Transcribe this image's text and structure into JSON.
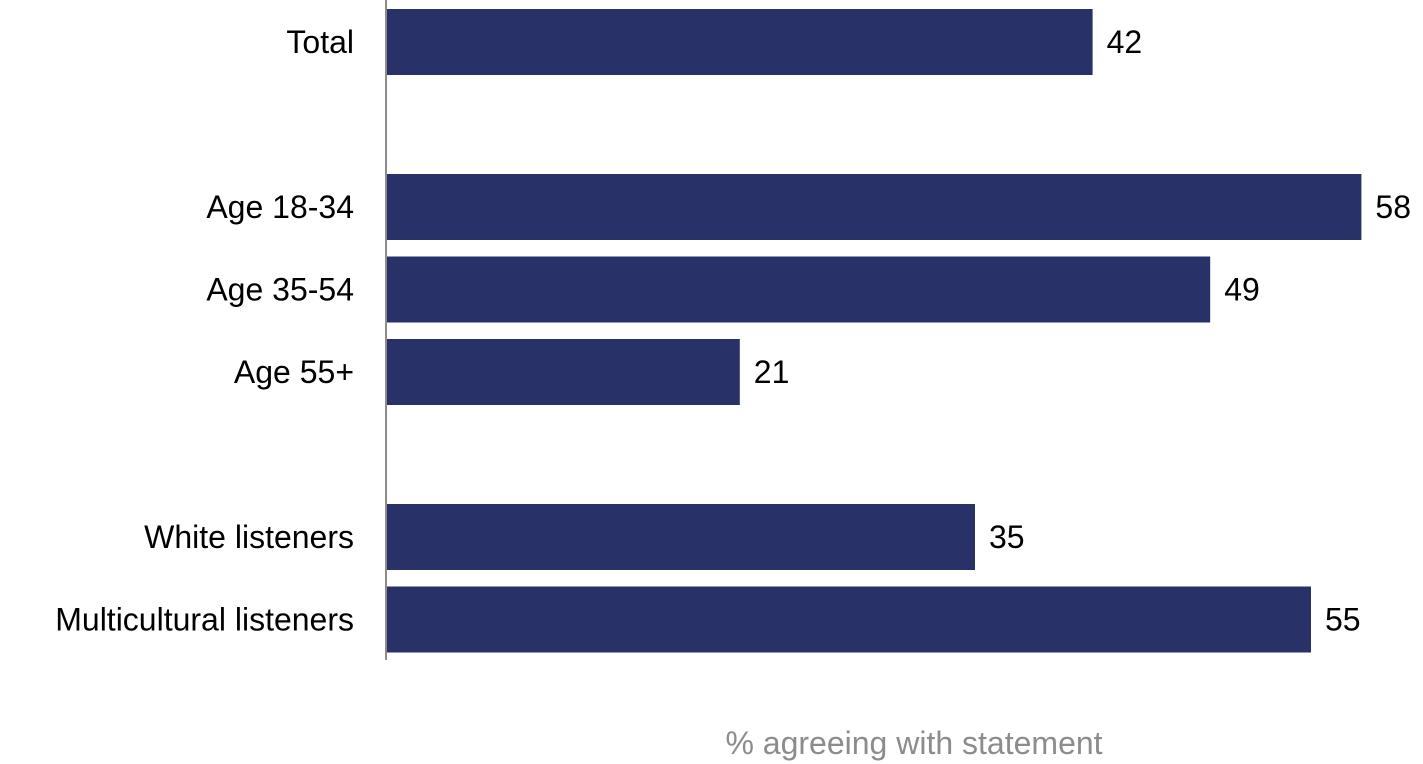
{
  "chart_data": {
    "type": "bar",
    "orientation": "horizontal",
    "categories": [
      "Total",
      "Age 18-34",
      "Age 35-54",
      "Age 55+",
      "White listeners",
      "Multicultural listeners"
    ],
    "values": [
      42,
      58,
      49,
      21,
      35,
      55
    ],
    "groups": [
      [
        "Total"
      ],
      [
        "Age 18-34",
        "Age 35-54",
        "Age 55+"
      ],
      [
        "White listeners",
        "Multicultural listeners"
      ]
    ],
    "xlabel": "% agreeing with statement",
    "xlim": [
      0,
      60
    ],
    "data_labels": true,
    "grid": false,
    "bar_color": "#283269",
    "axis_color": "#8c8c8c",
    "axis_title_color": "#8c8c8c"
  }
}
